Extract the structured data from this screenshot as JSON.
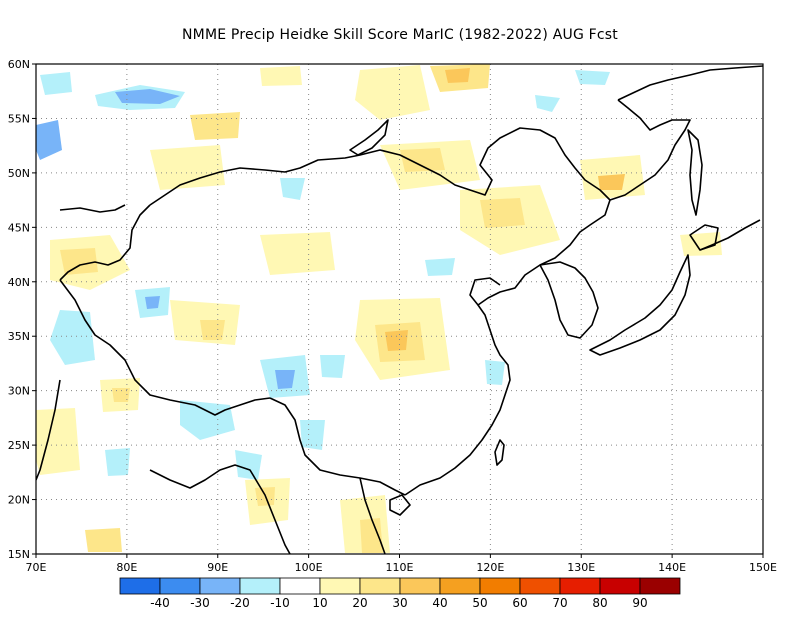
{
  "title": "NMME Precip Heidke Skill Score MarIC (1982-2022) AUG Fcst",
  "map": {
    "lon_range": [
      70,
      150
    ],
    "lat_range": [
      15,
      60
    ],
    "x_ticks": [
      "70E",
      "80E",
      "90E",
      "100E",
      "110E",
      "120E",
      "130E",
      "140E",
      "150E"
    ],
    "y_ticks": [
      "15N",
      "20N",
      "25N",
      "30N",
      "35N",
      "40N",
      "45N",
      "50N",
      "55N",
      "60N"
    ],
    "gridlines": "dotted"
  },
  "colorbar": {
    "labels": [
      "-40",
      "-30",
      "-20",
      "-10",
      "10",
      "20",
      "30",
      "40",
      "50",
      "60",
      "70",
      "80",
      "90"
    ],
    "colors": [
      "#1e6ee8",
      "#3c8cf0",
      "#78b4f8",
      "#b4f0fa",
      "#ffffff",
      "#fff8b4",
      "#fde68a",
      "#fbc75a",
      "#f5a020",
      "#f27d00",
      "#ef5000",
      "#e61e00",
      "#c80000",
      "#9a0000"
    ]
  }
}
